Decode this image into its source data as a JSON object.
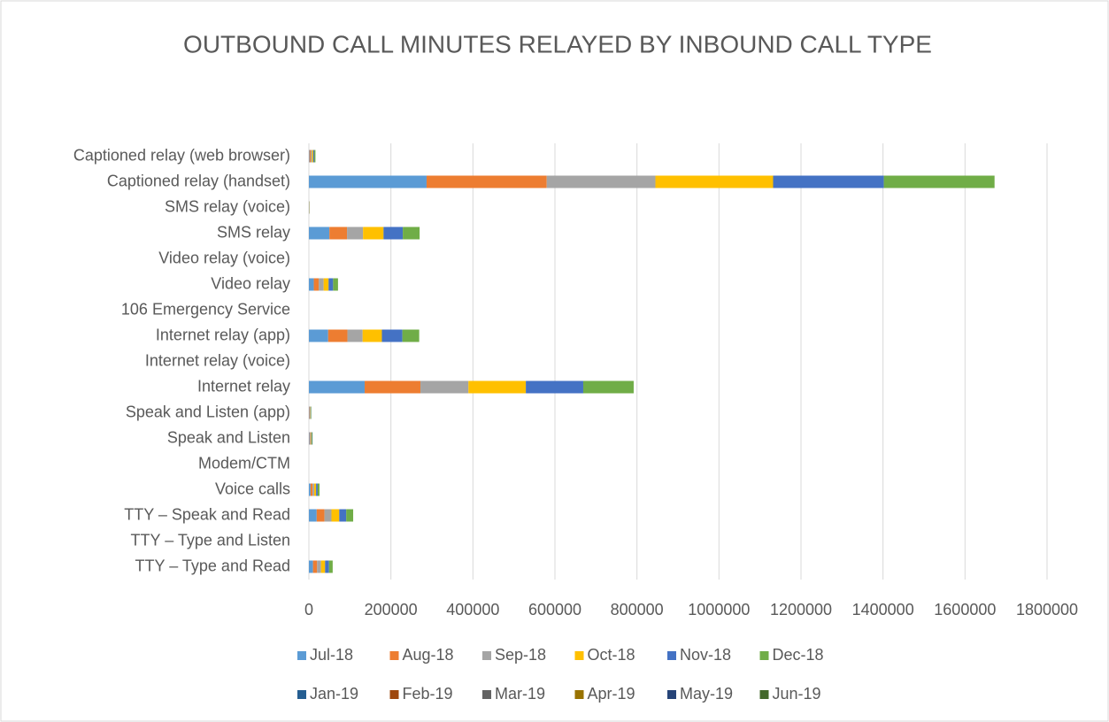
{
  "chart_data": {
    "type": "bar",
    "orientation": "horizontal",
    "stacked": true,
    "title": "OUTBOUND CALL MINUTES RELAYED BY INBOUND CALL TYPE",
    "categories": [
      "Captioned relay (web browser)",
      "Captioned relay (handset)",
      "SMS relay (voice)",
      "SMS relay",
      "Video relay (voice)",
      "Video relay",
      "106 Emergency Service",
      "Internet relay (app)",
      "Internet relay (voice)",
      "Internet relay",
      "Speak and Listen (app)",
      "Speak and Listen",
      "Modem/CTM",
      "Voice calls",
      "TTY – Speak and Read",
      "TTY – Type and Listen",
      "TTY – Type and Read"
    ],
    "series": [
      {
        "name": "Jul-18",
        "color": "#5b9bd5",
        "values": [
          1500,
          287000,
          300,
          50000,
          0,
          12000,
          0,
          47000,
          0,
          136000,
          1000,
          1500,
          0,
          4000,
          19000,
          0,
          10000
        ]
      },
      {
        "name": "Aug-18",
        "color": "#ed7d31",
        "values": [
          3000,
          293000,
          300,
          43000,
          0,
          12000,
          0,
          47000,
          0,
          136000,
          1000,
          1500,
          0,
          5000,
          19000,
          0,
          10000
        ]
      },
      {
        "name": "Sep-18",
        "color": "#a5a5a5",
        "values": [
          3000,
          265000,
          300,
          39000,
          0,
          12000,
          0,
          37000,
          0,
          117000,
          1000,
          1500,
          0,
          4000,
          17000,
          0,
          9500
        ]
      },
      {
        "name": "Oct-18",
        "color": "#ffc000",
        "values": [
          3000,
          287000,
          300,
          50000,
          0,
          12000,
          0,
          47000,
          0,
          140000,
          1000,
          1500,
          0,
          4500,
          19000,
          0,
          10000
        ]
      },
      {
        "name": "Nov-18",
        "color": "#4472c4",
        "values": [
          2500,
          270000,
          300,
          47000,
          0,
          11000,
          0,
          50000,
          0,
          140000,
          1000,
          1500,
          0,
          4000,
          17000,
          0,
          9500
        ]
      },
      {
        "name": "Dec-18",
        "color": "#70ad47",
        "values": [
          3000,
          270000,
          300,
          41000,
          0,
          12000,
          0,
          41000,
          0,
          123000,
          1000,
          1500,
          0,
          4500,
          17000,
          0,
          9000
        ]
      },
      {
        "name": "Jan-19",
        "color": "#255e91",
        "values": [
          0,
          0,
          0,
          0,
          0,
          0,
          0,
          0,
          0,
          0,
          0,
          0,
          0,
          0,
          0,
          0,
          0
        ]
      },
      {
        "name": "Feb-19",
        "color": "#9e480e",
        "values": [
          0,
          0,
          0,
          0,
          0,
          0,
          0,
          0,
          0,
          0,
          0,
          0,
          0,
          0,
          0,
          0,
          0
        ]
      },
      {
        "name": "Mar-19",
        "color": "#636363",
        "values": [
          0,
          0,
          0,
          0,
          0,
          0,
          0,
          0,
          0,
          0,
          0,
          0,
          0,
          0,
          0,
          0,
          0
        ]
      },
      {
        "name": "Apr-19",
        "color": "#997300",
        "values": [
          0,
          0,
          0,
          0,
          0,
          0,
          0,
          0,
          0,
          0,
          0,
          0,
          0,
          0,
          0,
          0,
          0
        ]
      },
      {
        "name": "May-19",
        "color": "#264478",
        "values": [
          0,
          0,
          0,
          0,
          0,
          0,
          0,
          0,
          0,
          0,
          0,
          0,
          0,
          0,
          0,
          0,
          0
        ]
      },
      {
        "name": "Jun-19",
        "color": "#43682b",
        "values": [
          0,
          0,
          0,
          0,
          0,
          0,
          0,
          0,
          0,
          0,
          0,
          0,
          0,
          0,
          0,
          0,
          0
        ]
      }
    ],
    "xlim": [
      0,
      1800000
    ],
    "xticks": [
      0,
      200000,
      400000,
      600000,
      800000,
      1000000,
      1200000,
      1400000,
      1600000,
      1800000
    ],
    "grid": true,
    "legend": "bottom"
  }
}
